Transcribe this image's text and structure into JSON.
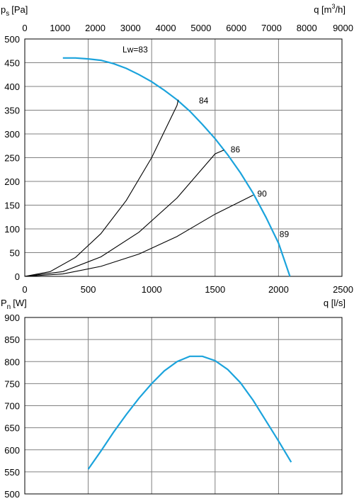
{
  "chart_data": [
    {
      "type": "line",
      "ylabel_main": "p",
      "ylabel_sub": "s",
      "ylabel_unit": "[Pa]",
      "xlabel": "q [l/s]",
      "x2label_main": "q [m",
      "x2label_sup": "3",
      "x2label_tail": "/h]",
      "xlim": [
        0,
        2500
      ],
      "ylim": [
        0,
        500
      ],
      "x2lim": [
        0,
        9000
      ],
      "xticks": [
        0,
        500,
        1000,
        1500,
        2000,
        2500
      ],
      "yticks": [
        0,
        50,
        100,
        150,
        200,
        250,
        300,
        350,
        400,
        450,
        500
      ],
      "x2ticks": [
        0,
        1000,
        2000,
        3000,
        4000,
        5000,
        6000,
        7000,
        8000,
        9000
      ],
      "grid": true,
      "fan_curve_color": "#1ba3dc",
      "system_curve_color": "#000000",
      "series": [
        {
          "kind": "fan",
          "x": [
            300,
            400,
            500,
            600,
            700,
            800,
            900,
            1000,
            1100,
            1200,
            1300,
            1400,
            1500,
            1600,
            1700,
            1800,
            1900,
            2000,
            2090
          ],
          "y": [
            460,
            460,
            458,
            455,
            448,
            438,
            425,
            410,
            392,
            372,
            348,
            320,
            290,
            256,
            218,
            175,
            125,
            70,
            0
          ]
        },
        {
          "kind": "system",
          "x": [
            0,
            200,
            400,
            600,
            800,
            1000,
            1200,
            1210
          ],
          "y": [
            0,
            10,
            40,
            90,
            160,
            250,
            360,
            372
          ]
        },
        {
          "kind": "system",
          "x": [
            0,
            300,
            600,
            900,
            1200,
            1500,
            1570
          ],
          "y": [
            0,
            10,
            41,
            93,
            165,
            258,
            266
          ]
        },
        {
          "kind": "system",
          "x": [
            0,
            300,
            600,
            900,
            1200,
            1500,
            1800
          ],
          "y": [
            0,
            5,
            21,
            47,
            84,
            131,
            171
          ]
        }
      ],
      "annotations": [
        {
          "text": "Lw=83",
          "x": 870,
          "y": 472
        },
        {
          "text": "84",
          "x": 1410,
          "y": 364
        },
        {
          "text": "86",
          "x": 1660,
          "y": 261
        },
        {
          "text": "90",
          "x": 1870,
          "y": 168
        },
        {
          "text": "89",
          "x": 2045,
          "y": 83
        }
      ]
    },
    {
      "type": "line",
      "ylabel_main": "P",
      "ylabel_sub": "n",
      "ylabel_unit": "[W]",
      "xlim": [
        0,
        2500
      ],
      "ylim": [
        500,
        900
      ],
      "xticks": [
        0,
        500,
        1000,
        1500,
        2000,
        2500
      ],
      "yticks": [
        500,
        550,
        600,
        650,
        700,
        750,
        800,
        850,
        900
      ],
      "grid": true,
      "line_color": "#1ba3dc",
      "series": [
        {
          "x": [
            500,
            600,
            700,
            800,
            900,
            1000,
            1100,
            1200,
            1300,
            1400,
            1500,
            1600,
            1700,
            1800,
            1900,
            2000,
            2100
          ],
          "y": [
            556,
            597,
            640,
            680,
            717,
            750,
            779,
            800,
            812,
            812,
            802,
            782,
            752,
            712,
            666,
            620,
            572
          ]
        }
      ]
    }
  ]
}
